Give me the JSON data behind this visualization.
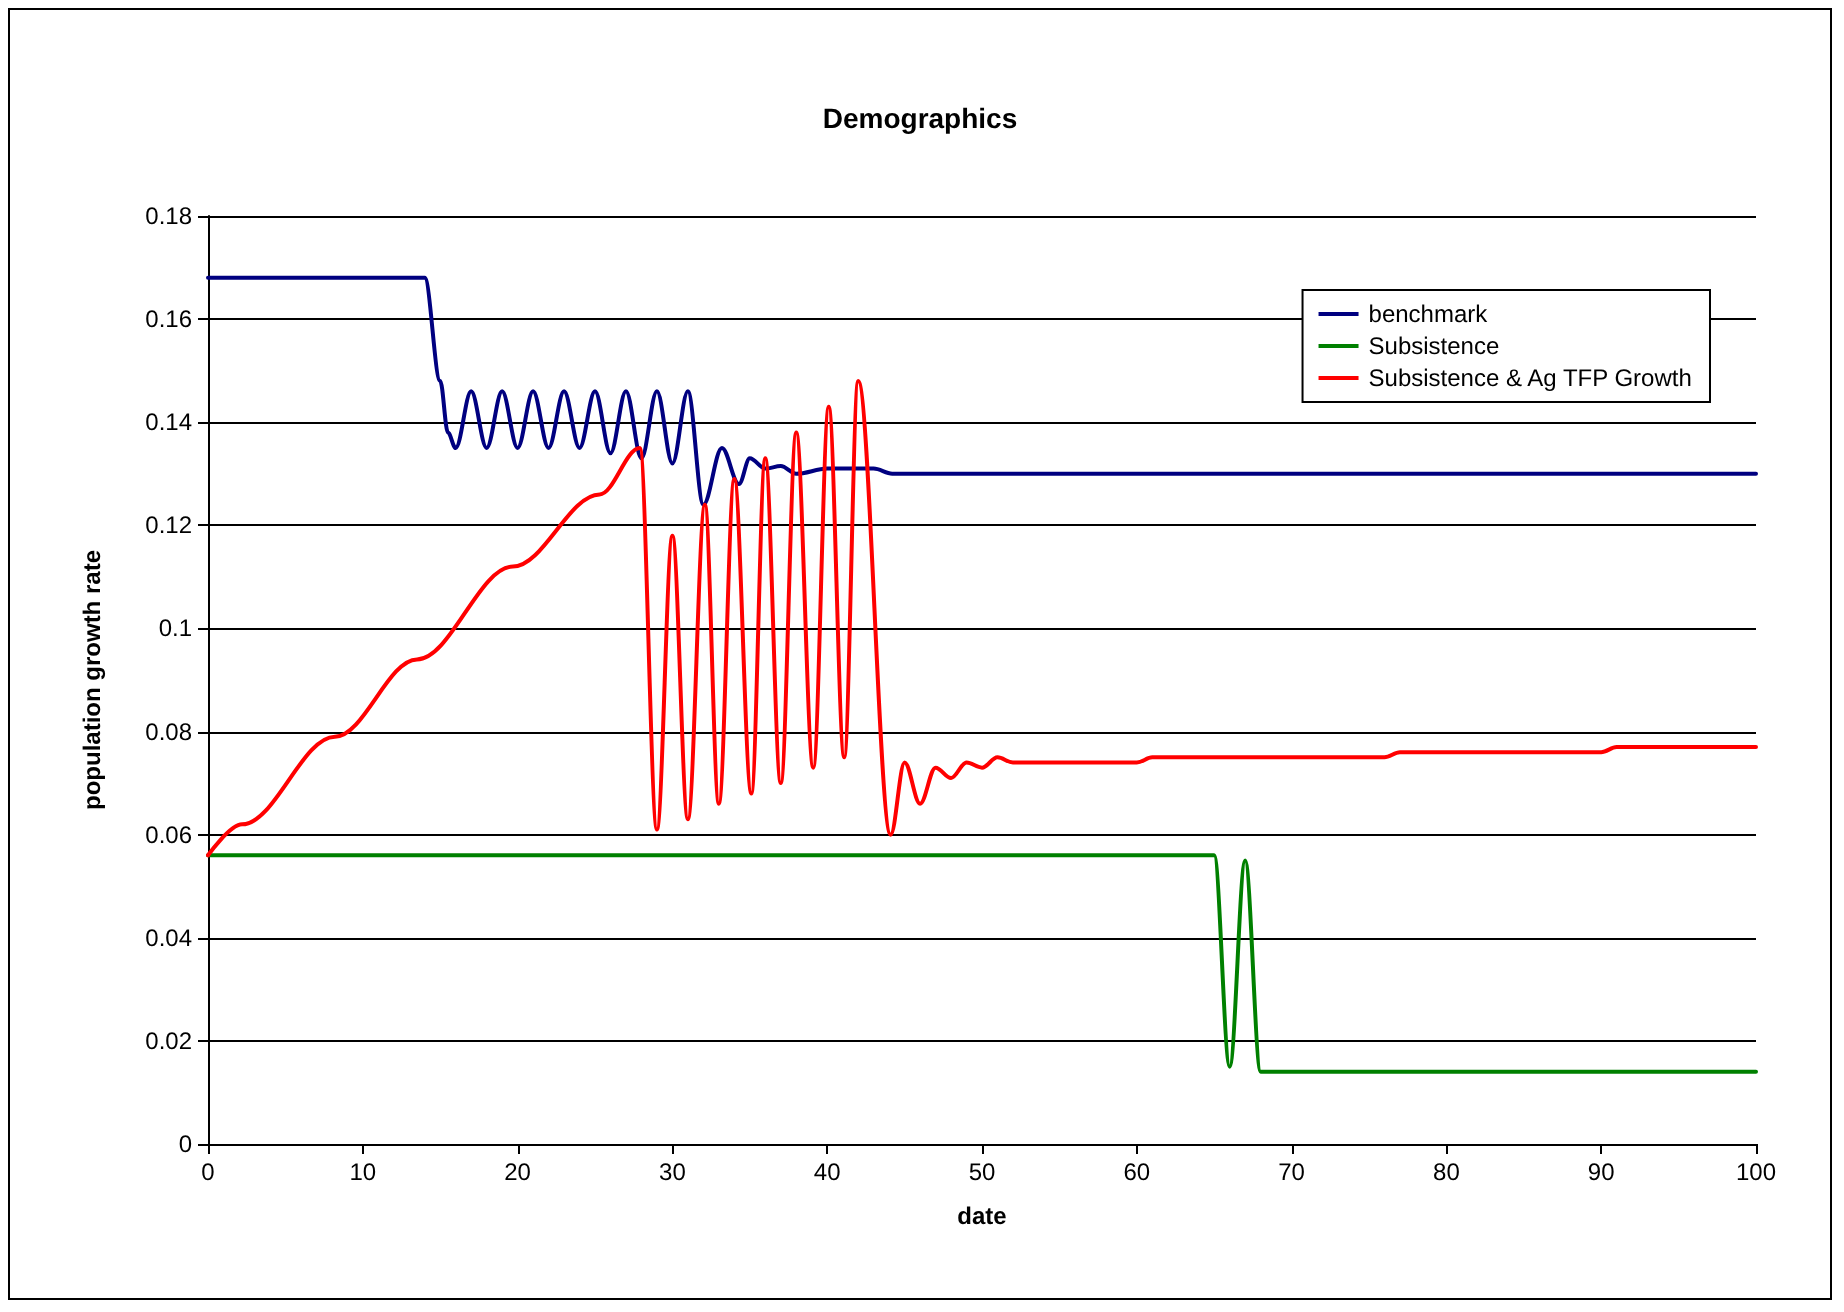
{
  "chart_data": {
    "type": "line",
    "title": "Demographics",
    "xlabel": "date",
    "ylabel": "population growth rate",
    "xlim": [
      0,
      100
    ],
    "xticks": [
      0,
      10,
      20,
      30,
      40,
      50,
      60,
      70,
      80,
      90,
      100
    ],
    "ylim": [
      0,
      0.18
    ],
    "yticks": [
      0,
      0.02,
      0.04,
      0.06,
      0.08,
      0.1,
      0.12,
      0.14,
      0.16,
      0.18
    ],
    "grid": "y",
    "legend": "top right",
    "marker": "none",
    "line_style": "solid",
    "series": [
      {
        "name": "benchmark",
        "color": "#000080",
        "x": [
          0,
          13,
          14,
          15,
          15.5,
          16,
          17,
          18,
          19,
          20,
          21,
          22,
          23,
          24,
          25,
          26,
          27,
          28,
          29,
          30,
          31,
          32,
          33.2,
          34.3,
          35,
          36,
          37,
          38,
          40,
          43,
          44.2,
          100
        ],
        "values": [
          0.168,
          0.168,
          0.168,
          0.148,
          0.138,
          0.135,
          0.146,
          0.135,
          0.146,
          0.135,
          0.146,
          0.135,
          0.146,
          0.135,
          0.146,
          0.134,
          0.146,
          0.133,
          0.146,
          0.132,
          0.146,
          0.124,
          0.135,
          0.128,
          0.133,
          0.131,
          0.1315,
          0.13,
          0.131,
          0.131,
          0.13,
          0.13
        ]
      },
      {
        "name": "Subsistence",
        "color": "#008000",
        "x": [
          0,
          64,
          65,
          66,
          67,
          68,
          100
        ],
        "values": [
          0.056,
          0.056,
          0.056,
          0.015,
          0.055,
          0.014,
          0.014
        ]
      },
      {
        "name": "Subsistence & Ag TFP Growth",
        "color": "#ff0000",
        "x": [
          0,
          2.2,
          8.2,
          13.5,
          19.7,
          25.3,
          27.9,
          29,
          30,
          31,
          32.1,
          33,
          34,
          35.1,
          36,
          37,
          38,
          39.1,
          40.1,
          41.1,
          42,
          44.1,
          45,
          46,
          47,
          48,
          49,
          50,
          51,
          52,
          60,
          61,
          76,
          77,
          90,
          91,
          100
        ],
        "values": [
          0.056,
          0.062,
          0.079,
          0.094,
          0.112,
          0.126,
          0.135,
          0.061,
          0.118,
          0.063,
          0.124,
          0.066,
          0.129,
          0.068,
          0.133,
          0.07,
          0.138,
          0.073,
          0.143,
          0.075,
          0.148,
          0.06,
          0.074,
          0.066,
          0.073,
          0.071,
          0.074,
          0.073,
          0.075,
          0.074,
          0.074,
          0.075,
          0.075,
          0.076,
          0.076,
          0.077,
          0.077
        ]
      }
    ]
  }
}
